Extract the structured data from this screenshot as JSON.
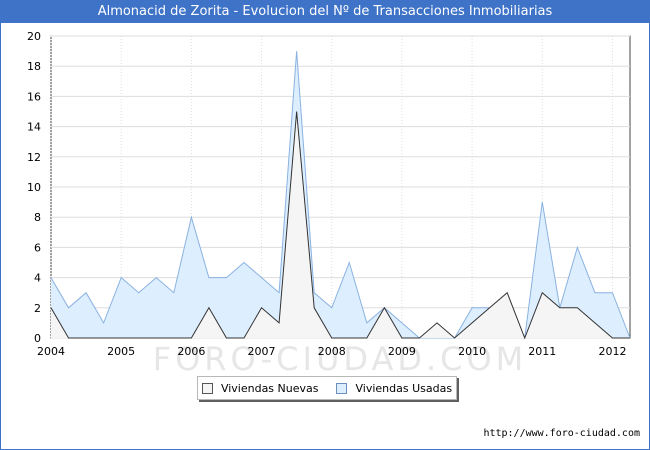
{
  "chart_data": {
    "type": "area",
    "title": "Almonacid de Zorita - Evolucion del Nº de Transacciones Inmobiliarias",
    "xlabel": "",
    "ylabel": "",
    "ylim": [
      0,
      20
    ],
    "xlim": [
      2004,
      2012.25
    ],
    "y_ticks": [
      "0",
      "2",
      "4",
      "6",
      "8",
      "10",
      "12",
      "14",
      "16",
      "18",
      "20"
    ],
    "x_ticks": [
      "2004",
      "2005",
      "2006",
      "2007",
      "2008",
      "2009",
      "2010",
      "2011",
      "2012"
    ],
    "grid": true,
    "legend_position": "bottom-center",
    "x": [
      2004,
      2004.25,
      2004.5,
      2004.75,
      2005,
      2005.25,
      2005.5,
      2005.75,
      2006,
      2006.25,
      2006.5,
      2006.75,
      2007,
      2007.25,
      2007.5,
      2007.75,
      2008,
      2008.25,
      2008.5,
      2008.75,
      2009,
      2009.25,
      2009.5,
      2009.75,
      2010,
      2010.25,
      2010.5,
      2010.75,
      2011,
      2011.25,
      2011.5,
      2011.75,
      2012,
      2012.25
    ],
    "series": [
      {
        "name": "Viviendas Nuevas",
        "color": "#f5f5f5",
        "stroke": "#333333",
        "values": [
          2,
          0,
          0,
          0,
          0,
          0,
          0,
          0,
          0,
          2,
          0,
          0,
          2,
          1,
          15,
          2,
          0,
          0,
          0,
          2,
          0,
          0,
          1,
          0,
          1,
          2,
          3,
          0,
          3,
          2,
          2,
          1,
          0,
          0
        ]
      },
      {
        "name": "Viviendas Usadas",
        "color": "#ddeeff",
        "stroke": "#8ab2e0",
        "values": [
          4,
          2,
          3,
          1,
          4,
          3,
          4,
          3,
          8,
          4,
          4,
          5,
          4,
          3,
          19,
          3,
          2,
          5,
          1,
          2,
          1,
          0,
          0,
          0,
          2,
          2,
          2,
          0,
          9,
          2,
          6,
          3,
          3,
          0
        ]
      }
    ],
    "watermark": "FORO-CIUDAD.COM"
  },
  "footer": {
    "source": "http://www.foro-ciudad.com"
  }
}
